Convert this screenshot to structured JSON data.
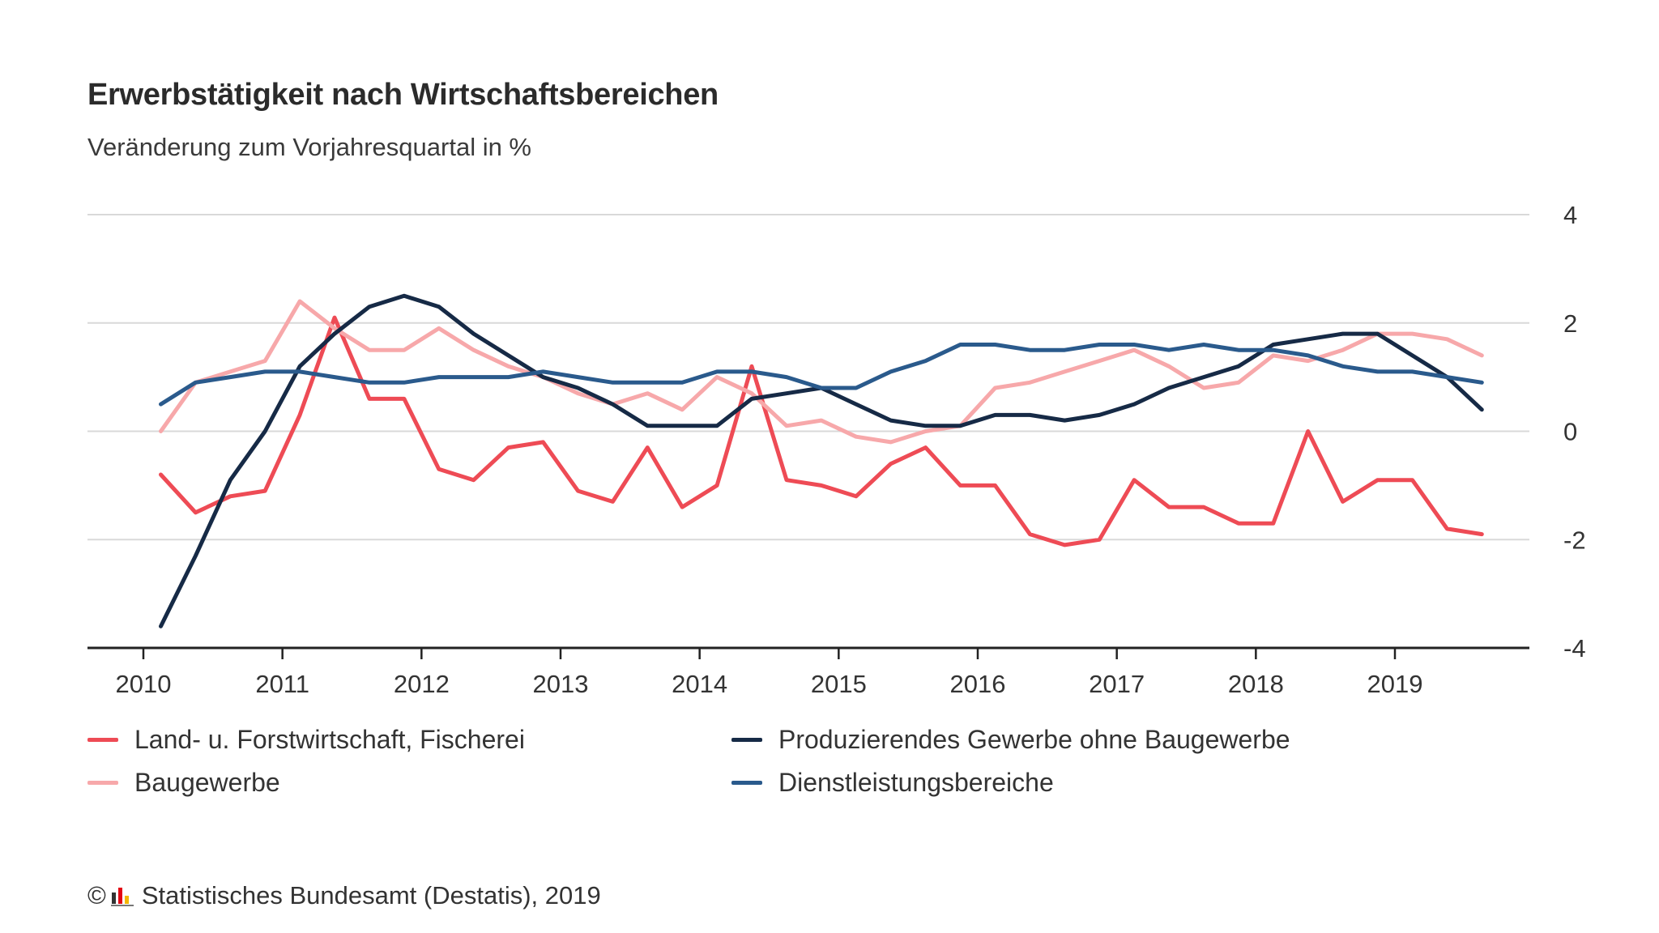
{
  "title": "Erwerbstätigkeit nach Wirtschaftsbereichen",
  "subtitle": "Veränderung zum Vorjahresquartal in %",
  "source": "Statistisches Bundesamt (Destatis), 2019",
  "copyright_symbol": "©",
  "chart_data": {
    "type": "line",
    "title": "Erwerbstätigkeit nach Wirtschaftsbereichen",
    "subtitle": "Veränderung zum Vorjahresquartal in %",
    "x_tick_labels": [
      "2010",
      "2011",
      "2012",
      "2013",
      "2014",
      "2015",
      "2016",
      "2017",
      "2018",
      "2019"
    ],
    "y_ticks": [
      4,
      2,
      0,
      -2,
      -4
    ],
    "y_tick_labels": [
      "4",
      "2",
      "0",
      "-2",
      "-4"
    ],
    "ylim": [
      -4,
      4
    ],
    "xlim": [
      2010,
      2020
    ],
    "grid": true,
    "y_axis_side": "right",
    "legend_position": "bottom",
    "series": [
      {
        "name": "Land- u. Forstwirtschaft, Fischerei",
        "color": "#ee4b55",
        "width": 5,
        "x": [
          2010.125,
          2010.375,
          2010.625,
          2010.875,
          2011.125,
          2011.375,
          2011.625,
          2011.875,
          2012.125,
          2012.375,
          2012.625,
          2012.875,
          2013.125,
          2013.375,
          2013.625,
          2013.875,
          2014.125,
          2014.375,
          2014.625,
          2014.875,
          2015.125,
          2015.375,
          2015.625,
          2015.875,
          2016.125,
          2016.375,
          2016.625,
          2016.875,
          2017.125,
          2017.375,
          2017.625,
          2017.875,
          2018.125,
          2018.375,
          2018.625,
          2018.875,
          2019.125,
          2019.375,
          2019.625
        ],
        "values": [
          -0.8,
          -1.5,
          -1.2,
          -1.1,
          0.3,
          2.1,
          0.6,
          0.6,
          -0.7,
          -0.9,
          -0.3,
          -0.2,
          -1.1,
          -1.3,
          -0.3,
          -1.4,
          -1.0,
          1.2,
          -0.9,
          -1.0,
          -1.2,
          -0.6,
          -0.3,
          -1.0,
          -1.0,
          -1.9,
          -2.1,
          -2.0,
          -0.9,
          -1.4,
          -1.4,
          -1.7,
          -1.7,
          0.0,
          -1.3,
          -0.9,
          -0.9,
          -1.8,
          -1.9
        ]
      },
      {
        "name": "Baugewerbe",
        "color": "#f7a8aa",
        "width": 5,
        "x": [
          2010.125,
          2010.375,
          2010.625,
          2010.875,
          2011.125,
          2011.375,
          2011.625,
          2011.875,
          2012.125,
          2012.375,
          2012.625,
          2012.875,
          2013.125,
          2013.375,
          2013.625,
          2013.875,
          2014.125,
          2014.375,
          2014.625,
          2014.875,
          2015.125,
          2015.375,
          2015.625,
          2015.875,
          2016.125,
          2016.375,
          2016.625,
          2016.875,
          2017.125,
          2017.375,
          2017.625,
          2017.875,
          2018.125,
          2018.375,
          2018.625,
          2018.875,
          2019.125,
          2019.375,
          2019.625
        ],
        "values": [
          0.0,
          0.9,
          1.1,
          1.3,
          2.4,
          1.9,
          1.5,
          1.5,
          1.9,
          1.5,
          1.2,
          1.0,
          0.7,
          0.5,
          0.7,
          0.4,
          1.0,
          0.7,
          0.1,
          0.2,
          -0.1,
          -0.2,
          0.0,
          0.1,
          0.8,
          0.9,
          1.1,
          1.3,
          1.5,
          1.2,
          0.8,
          0.9,
          1.4,
          1.3,
          1.5,
          1.8,
          1.8,
          1.7,
          1.4
        ]
      },
      {
        "name": "Produzierendes Gewerbe ohne Baugewerbe",
        "color": "#162a46",
        "width": 5,
        "x": [
          2010.125,
          2010.375,
          2010.625,
          2010.875,
          2011.125,
          2011.375,
          2011.625,
          2011.875,
          2012.125,
          2012.375,
          2012.625,
          2012.875,
          2013.125,
          2013.375,
          2013.625,
          2013.875,
          2014.125,
          2014.375,
          2014.625,
          2014.875,
          2015.125,
          2015.375,
          2015.625,
          2015.875,
          2016.125,
          2016.375,
          2016.625,
          2016.875,
          2017.125,
          2017.375,
          2017.625,
          2017.875,
          2018.125,
          2018.375,
          2018.625,
          2018.875,
          2019.125,
          2019.375,
          2019.625
        ],
        "values": [
          -3.6,
          -2.3,
          -0.9,
          0.0,
          1.2,
          1.8,
          2.3,
          2.5,
          2.3,
          1.8,
          1.4,
          1.0,
          0.8,
          0.5,
          0.1,
          0.1,
          0.1,
          0.6,
          0.7,
          0.8,
          0.5,
          0.2,
          0.1,
          0.1,
          0.3,
          0.3,
          0.2,
          0.3,
          0.5,
          0.8,
          1.0,
          1.2,
          1.6,
          1.7,
          1.8,
          1.8,
          1.4,
          1.0,
          0.4
        ]
      },
      {
        "name": "Dienstleistungsbereiche",
        "color": "#2a5a8c",
        "width": 5,
        "x": [
          2010.125,
          2010.375,
          2010.625,
          2010.875,
          2011.125,
          2011.375,
          2011.625,
          2011.875,
          2012.125,
          2012.375,
          2012.625,
          2012.875,
          2013.125,
          2013.375,
          2013.625,
          2013.875,
          2014.125,
          2014.375,
          2014.625,
          2014.875,
          2015.125,
          2015.375,
          2015.625,
          2015.875,
          2016.125,
          2016.375,
          2016.625,
          2016.875,
          2017.125,
          2017.375,
          2017.625,
          2017.875,
          2018.125,
          2018.375,
          2018.625,
          2018.875,
          2019.125,
          2019.375,
          2019.625
        ],
        "values": [
          0.5,
          0.9,
          1.0,
          1.1,
          1.1,
          1.0,
          0.9,
          0.9,
          1.0,
          1.0,
          1.0,
          1.1,
          1.0,
          0.9,
          0.9,
          0.9,
          1.1,
          1.1,
          1.0,
          0.8,
          0.8,
          1.1,
          1.3,
          1.6,
          1.6,
          1.5,
          1.5,
          1.6,
          1.6,
          1.5,
          1.6,
          1.5,
          1.5,
          1.4,
          1.2,
          1.1,
          1.1,
          1.0,
          0.9
        ]
      }
    ]
  },
  "legend": [
    {
      "label": "Land- u. Forstwirtschaft, Fischerei",
      "color": "#ee4b55"
    },
    {
      "label": "Produzierendes Gewerbe ohne Baugewerbe",
      "color": "#162a46"
    },
    {
      "label": "Baugewerbe",
      "color": "#f7a8aa"
    },
    {
      "label": "Dienstleistungsbereiche",
      "color": "#2a5a8c"
    }
  ],
  "logo_colors": [
    "#333333",
    "#e30613",
    "#f2b600"
  ]
}
